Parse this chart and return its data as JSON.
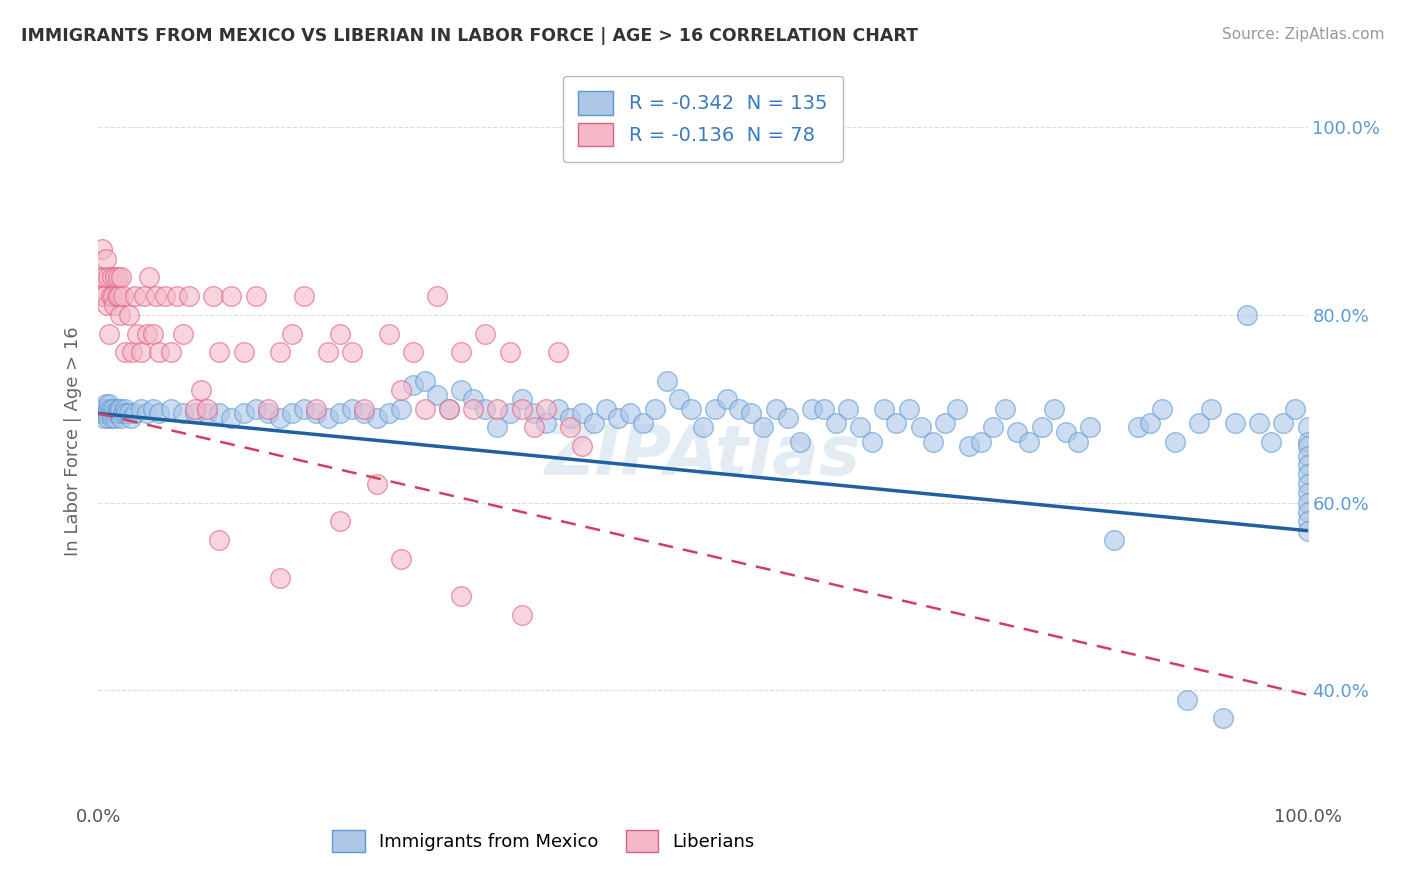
{
  "title": "IMMIGRANTS FROM MEXICO VS LIBERIAN IN LABOR FORCE | AGE > 16 CORRELATION CHART",
  "source": "Source: ZipAtlas.com",
  "ylabel": "In Labor Force | Age > 16",
  "xlim": [
    0.0,
    1.0
  ],
  "ylim": [
    0.28,
    1.05
  ],
  "xtick_labels": [
    "0.0%",
    "100.0%"
  ],
  "ytick_values": [
    0.4,
    0.6,
    0.8,
    1.0
  ],
  "ytick_labels": [
    "40.0%",
    "60.0%",
    "80.0%",
    "100.0%"
  ],
  "r_mexico": -0.342,
  "n_mexico": 135,
  "r_liberian": -0.136,
  "n_liberian": 78,
  "mexico_fill": "#aec6e8",
  "mexico_edge": "#5b9bd5",
  "liberian_fill": "#f4b8c8",
  "liberian_edge": "#e06080",
  "mexico_line_color": "#2060a0",
  "liberian_line_color": "#d04060",
  "watermark": "ZIPAtlas",
  "background_color": "#ffffff",
  "grid_color": "#dddddd",
  "mexico_x": [
    0.002,
    0.003,
    0.004,
    0.005,
    0.005,
    0.006,
    0.007,
    0.008,
    0.008,
    0.009,
    0.01,
    0.01,
    0.011,
    0.012,
    0.013,
    0.014,
    0.015,
    0.016,
    0.017,
    0.018,
    0.019,
    0.02,
    0.022,
    0.023,
    0.025,
    0.027,
    0.03,
    0.035,
    0.04,
    0.045,
    0.05,
    0.06,
    0.07,
    0.08,
    0.09,
    0.1,
    0.11,
    0.12,
    0.13,
    0.14,
    0.15,
    0.16,
    0.17,
    0.18,
    0.19,
    0.2,
    0.21,
    0.22,
    0.23,
    0.24,
    0.25,
    0.26,
    0.27,
    0.28,
    0.29,
    0.3,
    0.31,
    0.32,
    0.33,
    0.34,
    0.35,
    0.36,
    0.37,
    0.38,
    0.39,
    0.4,
    0.41,
    0.42,
    0.43,
    0.44,
    0.45,
    0.46,
    0.47,
    0.48,
    0.49,
    0.5,
    0.51,
    0.52,
    0.53,
    0.54,
    0.55,
    0.56,
    0.57,
    0.58,
    0.59,
    0.6,
    0.61,
    0.62,
    0.63,
    0.64,
    0.65,
    0.66,
    0.67,
    0.68,
    0.69,
    0.7,
    0.71,
    0.72,
    0.73,
    0.74,
    0.75,
    0.76,
    0.77,
    0.78,
    0.79,
    0.8,
    0.81,
    0.82,
    0.84,
    0.86,
    0.87,
    0.88,
    0.89,
    0.9,
    0.91,
    0.92,
    0.93,
    0.94,
    0.95,
    0.96,
    0.97,
    0.98,
    0.99,
    1.0,
    1.0,
    1.0,
    1.0,
    1.0,
    1.0,
    1.0,
    1.0,
    1.0,
    1.0,
    1.0,
    1.0
  ],
  "mexico_y": [
    0.695,
    0.7,
    0.695,
    0.69,
    0.7,
    0.705,
    0.695,
    0.69,
    0.7,
    0.705,
    0.695,
    0.7,
    0.69,
    0.7,
    0.695,
    0.69,
    0.695,
    0.7,
    0.695,
    0.7,
    0.69,
    0.695,
    0.7,
    0.695,
    0.695,
    0.69,
    0.695,
    0.7,
    0.695,
    0.7,
    0.695,
    0.7,
    0.695,
    0.695,
    0.695,
    0.695,
    0.69,
    0.695,
    0.7,
    0.695,
    0.69,
    0.695,
    0.7,
    0.695,
    0.69,
    0.695,
    0.7,
    0.695,
    0.69,
    0.695,
    0.7,
    0.725,
    0.73,
    0.715,
    0.7,
    0.72,
    0.71,
    0.7,
    0.68,
    0.695,
    0.71,
    0.695,
    0.685,
    0.7,
    0.69,
    0.695,
    0.685,
    0.7,
    0.69,
    0.695,
    0.685,
    0.7,
    0.73,
    0.71,
    0.7,
    0.68,
    0.7,
    0.71,
    0.7,
    0.695,
    0.68,
    0.7,
    0.69,
    0.665,
    0.7,
    0.7,
    0.685,
    0.7,
    0.68,
    0.665,
    0.7,
    0.685,
    0.7,
    0.68,
    0.665,
    0.685,
    0.7,
    0.66,
    0.665,
    0.68,
    0.7,
    0.675,
    0.665,
    0.68,
    0.7,
    0.675,
    0.665,
    0.68,
    0.56,
    0.68,
    0.685,
    0.7,
    0.665,
    0.39,
    0.685,
    0.7,
    0.37,
    0.685,
    0.8,
    0.685,
    0.665,
    0.685,
    0.7,
    0.68,
    0.665,
    0.66,
    0.65,
    0.64,
    0.63,
    0.62,
    0.61,
    0.6,
    0.59,
    0.58,
    0.57
  ],
  "liberian_x": [
    0.002,
    0.003,
    0.004,
    0.005,
    0.005,
    0.006,
    0.007,
    0.008,
    0.009,
    0.01,
    0.011,
    0.012,
    0.013,
    0.014,
    0.015,
    0.016,
    0.017,
    0.018,
    0.019,
    0.02,
    0.022,
    0.025,
    0.028,
    0.03,
    0.032,
    0.035,
    0.038,
    0.04,
    0.042,
    0.045,
    0.048,
    0.05,
    0.055,
    0.06,
    0.065,
    0.07,
    0.075,
    0.08,
    0.085,
    0.09,
    0.095,
    0.1,
    0.11,
    0.12,
    0.13,
    0.14,
    0.15,
    0.16,
    0.17,
    0.18,
    0.19,
    0.2,
    0.21,
    0.22,
    0.23,
    0.24,
    0.25,
    0.26,
    0.27,
    0.28,
    0.29,
    0.3,
    0.31,
    0.32,
    0.33,
    0.34,
    0.35,
    0.36,
    0.37,
    0.38,
    0.39,
    0.4,
    0.1,
    0.15,
    0.2,
    0.25,
    0.3,
    0.35
  ],
  "liberian_y": [
    0.84,
    0.87,
    0.82,
    0.84,
    0.82,
    0.86,
    0.81,
    0.84,
    0.78,
    0.82,
    0.84,
    0.82,
    0.81,
    0.84,
    0.82,
    0.84,
    0.82,
    0.8,
    0.84,
    0.82,
    0.76,
    0.8,
    0.76,
    0.82,
    0.78,
    0.76,
    0.82,
    0.78,
    0.84,
    0.78,
    0.82,
    0.76,
    0.82,
    0.76,
    0.82,
    0.78,
    0.82,
    0.7,
    0.72,
    0.7,
    0.82,
    0.76,
    0.82,
    0.76,
    0.82,
    0.7,
    0.76,
    0.78,
    0.82,
    0.7,
    0.76,
    0.78,
    0.76,
    0.7,
    0.62,
    0.78,
    0.72,
    0.76,
    0.7,
    0.82,
    0.7,
    0.76,
    0.7,
    0.78,
    0.7,
    0.76,
    0.7,
    0.68,
    0.7,
    0.76,
    0.68,
    0.66,
    0.56,
    0.52,
    0.58,
    0.54,
    0.5,
    0.48
  ]
}
